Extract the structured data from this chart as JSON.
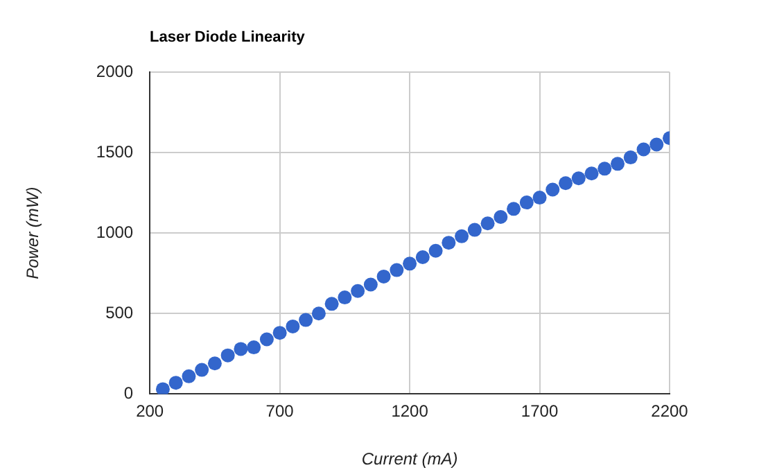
{
  "chart_data": {
    "type": "scatter",
    "title": "Laser Diode Linearity",
    "xlabel": "Current (mA)",
    "ylabel": "Power (mW)",
    "x": [
      250,
      300,
      350,
      400,
      450,
      500,
      550,
      600,
      650,
      700,
      750,
      800,
      850,
      900,
      950,
      1000,
      1050,
      1100,
      1150,
      1200,
      1250,
      1300,
      1350,
      1400,
      1450,
      1500,
      1550,
      1600,
      1650,
      1700,
      1750,
      1800,
      1850,
      1900,
      1950,
      2000,
      2050,
      2100,
      2150,
      2200
    ],
    "series": [
      {
        "color": "#3366cc",
        "values": [
          30,
          70,
          110,
          150,
          190,
          240,
          280,
          290,
          340,
          380,
          420,
          460,
          500,
          560,
          600,
          640,
          680,
          730,
          770,
          810,
          850,
          890,
          940,
          980,
          1020,
          1060,
          1100,
          1150,
          1190,
          1220,
          1270,
          1310,
          1340,
          1370,
          1400,
          1430,
          1470,
          1520,
          1550,
          1590
        ]
      }
    ],
    "xlim": [
      200,
      2200
    ],
    "xticks": [
      200,
      700,
      1200,
      1700,
      2200
    ],
    "ylim": [
      0,
      2000
    ],
    "yticks": [
      0,
      500,
      1000,
      1500,
      2000
    ],
    "grid": true,
    "legend": false,
    "marker": "circle"
  }
}
